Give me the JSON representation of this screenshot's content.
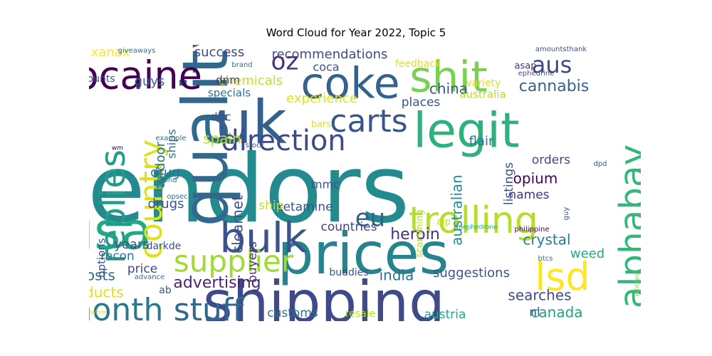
{
  "chart_data": {
    "type": "wordcloud",
    "title": "Word Cloud for Year 2022, Topic 5",
    "colormap": "viridis",
    "words": [
      {
        "text": "vendors",
        "size": 100,
        "color": "#238a8d"
      },
      {
        "text": "quality",
        "size": 62,
        "color": "#31688e"
      },
      {
        "text": "uk",
        "size": 60,
        "color": "#34608d"
      },
      {
        "text": "prices",
        "size": 58,
        "color": "#25848e"
      },
      {
        "text": "shipping",
        "size": 58,
        "color": "#3e4a89"
      },
      {
        "text": "usa",
        "size": 55,
        "color": "#22a884"
      },
      {
        "text": "legit",
        "size": 50,
        "color": "#2db27d"
      },
      {
        "text": "coke",
        "size": 44,
        "color": "#33638d"
      },
      {
        "text": "shit",
        "size": 44,
        "color": "#7ad151"
      },
      {
        "text": "bulk",
        "size": 42,
        "color": "#3b528b"
      },
      {
        "text": "cocaine",
        "size": 40,
        "color": "#440154"
      },
      {
        "text": "lsd",
        "size": 40,
        "color": "#fde725"
      },
      {
        "text": "trolling",
        "size": 38,
        "color": "#b5de2b"
      },
      {
        "text": "alphabay",
        "size": 36,
        "color": "#35b779"
      },
      {
        "text": "replies",
        "size": 35,
        "color": "#1f9e89"
      },
      {
        "text": "carts",
        "size": 33,
        "color": "#39568c"
      },
      {
        "text": "month",
        "size": 32,
        "color": "#2a788e"
      },
      {
        "text": "country",
        "size": 32,
        "color": "#dde318"
      },
      {
        "text": "stuff",
        "size": 32,
        "color": "#31688e"
      },
      {
        "text": "supplier",
        "size": 30,
        "color": "#a0da39"
      },
      {
        "text": "direction",
        "size": 28,
        "color": "#3e4a89"
      },
      {
        "text": "oz",
        "size": 26,
        "color": "#472f7d"
      },
      {
        "text": "eu",
        "size": 26,
        "color": "#355f8d"
      },
      {
        "text": "aus",
        "size": 24,
        "color": "#3e4989"
      },
      {
        "text": "heroin",
        "size": 19,
        "color": "#46307e"
      },
      {
        "text": "advertising",
        "size": 18,
        "color": "#482475"
      },
      {
        "text": "cannabis",
        "size": 17,
        "color": "#33638d"
      },
      {
        "text": "china",
        "size": 17,
        "color": "#3b528b"
      },
      {
        "text": "crystal",
        "size": 16,
        "color": "#287d8e"
      },
      {
        "text": "posts",
        "size": 17,
        "color": "#31688e"
      },
      {
        "text": "opium",
        "size": 16,
        "color": "#440154"
      },
      {
        "text": "searches",
        "size": 16,
        "color": "#3e4a89"
      },
      {
        "text": "india",
        "size": 16,
        "color": "#2c728e"
      },
      {
        "text": "canada",
        "size": 16,
        "color": "#1fa088"
      },
      {
        "text": "products",
        "size": 16,
        "color": "#dde318"
      },
      {
        "text": "spain",
        "size": 16,
        "color": "#b8de29"
      },
      {
        "text": "clearnet",
        "size": 15,
        "color": "#3b528b"
      },
      {
        "text": "australian",
        "size": 15,
        "color": "#238a8d"
      },
      {
        "text": "success",
        "size": 15,
        "color": "#3e4a89"
      },
      {
        "text": "recommendations",
        "size": 15,
        "color": "#3e4a89"
      },
      {
        "text": "experience",
        "size": 15,
        "color": "#dde318"
      },
      {
        "text": "suggestions",
        "size": 15,
        "color": "#3b528b"
      },
      {
        "text": "xanax",
        "size": 15,
        "color": "#fde725"
      },
      {
        "text": "guys",
        "size": 15,
        "color": "#31688e"
      },
      {
        "text": "chemicals",
        "size": 15,
        "color": "#c2df23"
      },
      {
        "text": "weed",
        "size": 14,
        "color": "#22a884"
      },
      {
        "text": "years",
        "size": 15,
        "color": "#3b528b"
      },
      {
        "text": "drugs",
        "size": 14,
        "color": "#3b528b"
      },
      {
        "text": "drug",
        "size": 14,
        "color": "#2c728e"
      },
      {
        "text": "tordoor",
        "size": 14,
        "color": "#2c728e"
      },
      {
        "text": "flair",
        "size": 15,
        "color": "#2c728e"
      },
      {
        "text": "orders",
        "size": 14,
        "color": "#414487"
      },
      {
        "text": "places",
        "size": 14,
        "color": "#3b528b"
      },
      {
        "text": "names",
        "size": 14,
        "color": "#46337f"
      },
      {
        "text": "ketamine",
        "size": 14,
        "color": "#3b528b"
      },
      {
        "text": "countries",
        "size": 14,
        "color": "#414487"
      },
      {
        "text": "listings",
        "size": 14,
        "color": "#3b528b"
      },
      {
        "text": "buyers",
        "size": 14,
        "color": "#46337f"
      },
      {
        "text": "australia",
        "size": 13,
        "color": "#b5de2b"
      },
      {
        "text": "customs",
        "size": 14,
        "color": "#2c728e"
      },
      {
        "text": "ship",
        "size": 14,
        "color": "#c8e020"
      },
      {
        "text": "price",
        "size": 14,
        "color": "#414487"
      },
      {
        "text": "recon",
        "size": 14,
        "color": "#2c728e"
      },
      {
        "text": "austria",
        "size": 14,
        "color": "#22a884"
      },
      {
        "text": "nl",
        "size": 14,
        "color": "#3b528b"
      },
      {
        "text": "mmc",
        "size": 13,
        "color": "#3b528b"
      },
      {
        "text": "dhc",
        "size": 13,
        "color": "#3b528b"
      },
      {
        "text": "ships",
        "size": 13,
        "color": "#2c728e"
      },
      {
        "text": "coca",
        "size": 13,
        "color": "#3b528b"
      },
      {
        "text": "options",
        "size": 13,
        "color": "#3b528b"
      },
      {
        "text": "specials",
        "size": 13,
        "color": "#2c728e"
      },
      {
        "text": "amounts",
        "size": 13,
        "color": "#3b528b"
      },
      {
        "text": "dnm",
        "size": 13,
        "color": "#46337f"
      },
      {
        "text": "darkde",
        "size": 12,
        "color": "#3b528b"
      },
      {
        "text": "buddies",
        "size": 12,
        "color": "#3b528b"
      },
      {
        "text": "ab",
        "size": 12,
        "color": "#3b528b"
      },
      {
        "text": "variety",
        "size": 12,
        "color": "#dde318"
      },
      {
        "text": "feedback",
        "size": 12,
        "color": "#dde318"
      },
      {
        "text": "resale",
        "size": 12,
        "color": "#b5de2b"
      },
      {
        "text": "scamming",
        "size": 11,
        "color": "#b5de2b"
      },
      {
        "text": "alp",
        "size": 11,
        "color": "#c2df23"
      },
      {
        "text": "bars",
        "size": 11,
        "color": "#dde318"
      },
      {
        "text": "asap",
        "size": 11,
        "color": "#46337f"
      },
      {
        "text": "amountsthank",
        "size": 10,
        "color": "#3b528b"
      },
      {
        "text": "ephedrine",
        "size": 9,
        "color": "#3b528b"
      },
      {
        "text": "giveaways",
        "size": 9,
        "color": "#2c728e"
      },
      {
        "text": "brand",
        "size": 9,
        "color": "#2c728e"
      },
      {
        "text": "philippine",
        "size": 9,
        "color": "#440154"
      },
      {
        "text": "mephedrone",
        "size": 8,
        "color": "#22a884"
      },
      {
        "text": "guy",
        "size": 9,
        "color": "#3b528b"
      },
      {
        "text": "example",
        "size": 9,
        "color": "#2c728e"
      },
      {
        "text": "stock",
        "size": 9,
        "color": "#3b528b"
      },
      {
        "text": "bond",
        "size": 9,
        "color": "#2c728e"
      },
      {
        "text": "opsec",
        "size": 9,
        "color": "#2c728e"
      },
      {
        "text": "advance",
        "size": 9,
        "color": "#2c728e"
      },
      {
        "text": "btcs",
        "size": 9,
        "color": "#2c728e"
      },
      {
        "text": "dpd",
        "size": 9,
        "color": "#3b528b"
      },
      {
        "text": "edibles",
        "size": 8,
        "color": "#7ad151"
      },
      {
        "text": "wm",
        "size": 8,
        "color": "#440154"
      },
      {
        "text": "whm",
        "size": 8,
        "color": "#dde318"
      }
    ]
  }
}
